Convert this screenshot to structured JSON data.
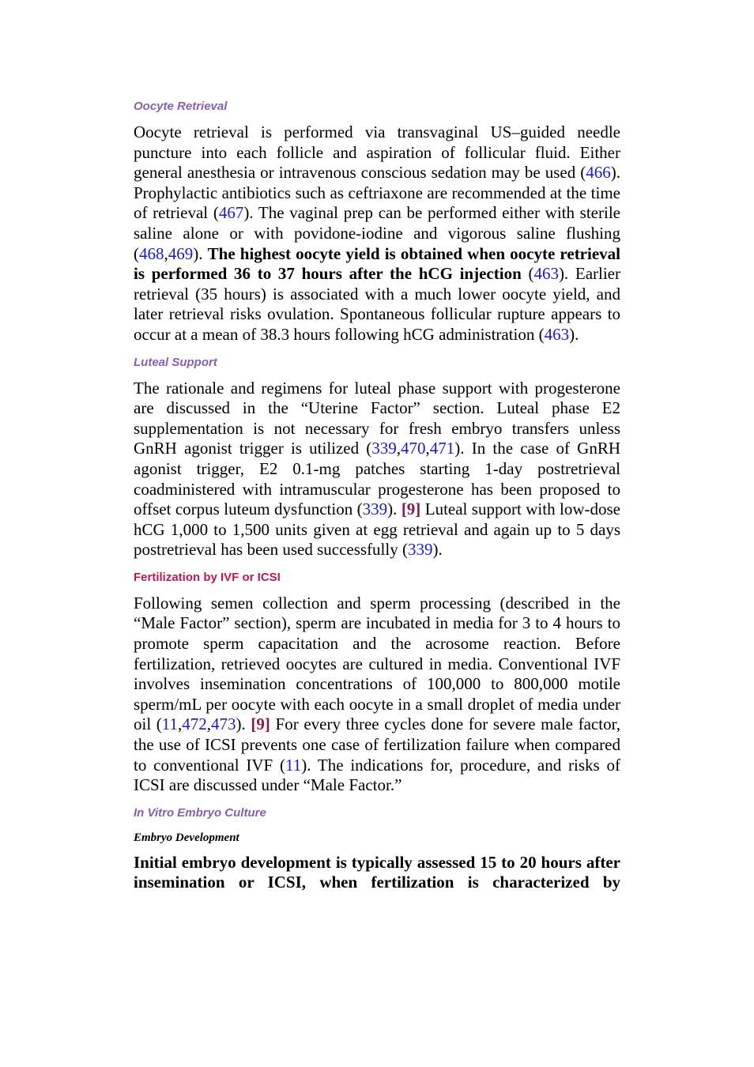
{
  "sections": [
    {
      "heading": "Oocyte Retrieval",
      "paragraph": [
        "Oocyte retrieval is performed via transvaginal US–guided needle puncture into each follicle and aspiration of follicular fluid. Either general anesthesia or intravenous conscious sedation may be used (",
        {
          "link": "466"
        },
        "). Prophylactic antibiotics such as ceftriaxone are recommended at the time of retrieval (",
        {
          "link": "467"
        },
        "). The vaginal prep can be performed either with sterile saline alone or with povidone-iodine and vigorous saline flushing (",
        {
          "link": "468"
        },
        ",",
        {
          "link": "469"
        },
        "). ",
        {
          "bold": "The highest oocyte yield is obtained when oocyte retrieval is performed 36 to 37 hours after the hCG injection"
        },
        " (",
        {
          "link": "463"
        },
        "). Earlier retrieval (35 hours) is associated with a much lower oocyte yield, and later retrieval risks ovulation. Spontaneous follicular rupture appears to occur at a mean of 38.3 hours following hCG administration (",
        {
          "link": "463"
        },
        ")."
      ]
    },
    {
      "heading": "Luteal Support",
      "paragraph": [
        "The rationale and regimens for luteal phase support with progesterone are discussed in the “Uterine Factor” section. Luteal phase E2 supplementation is not necessary for fresh embryo transfers unless GnRH agonist trigger is utilized (",
        {
          "link": "339"
        },
        ",",
        {
          "link": "470"
        },
        ",",
        {
          "link": "471"
        },
        "). In the case of GnRH agonist trigger, E2 0.1-mg patches starting 1-day postretrieval coadministered with intramuscular progesterone has been proposed to offset corpus luteum dysfunction (",
        {
          "link": "339"
        },
        "). ",
        {
          "ref": "[9]"
        },
        " Luteal support with low-dose hCG 1,000 to 1,500 units given at egg retrieval and again up to 5 days postretrieval has been used successfully (",
        {
          "link": "339"
        },
        ")."
      ]
    },
    {
      "heading": "Fertilization by IVF or ICSI",
      "paragraph": [
        "Following semen collection and sperm processing (described in the “Male Factor” section), sperm are incubated in media for 3 to 4 hours to promote sperm capacitation and the acrosome reaction. Before fertilization, retrieved oocytes are cultured in media. Conventional IVF involves insemination concentrations of 100,000 to 800,000 motile sperm/mL per oocyte with each oocyte in a small droplet of media under oil (",
        {
          "link": "11"
        },
        ",",
        {
          "link": "472"
        },
        ",",
        {
          "link": "473"
        },
        "). ",
        {
          "ref": "[9]"
        },
        " For every three cycles done for severe male factor, the use of ICSI prevents one case of fertilization failure when compared to conventional IVF (",
        {
          "link": "11"
        },
        "). The indications for, procedure, and risks of ICSI are discussed under “Male Factor.”"
      ]
    },
    {
      "heading": "In Vitro Embryo Culture",
      "subheading": "Embryo Development",
      "paragraph": [
        {
          "bold": "Initial embryo development is typically assessed 15 to 20 hours after insemination or ICSI, when fertilization is characterized by"
        }
      ]
    }
  ]
}
